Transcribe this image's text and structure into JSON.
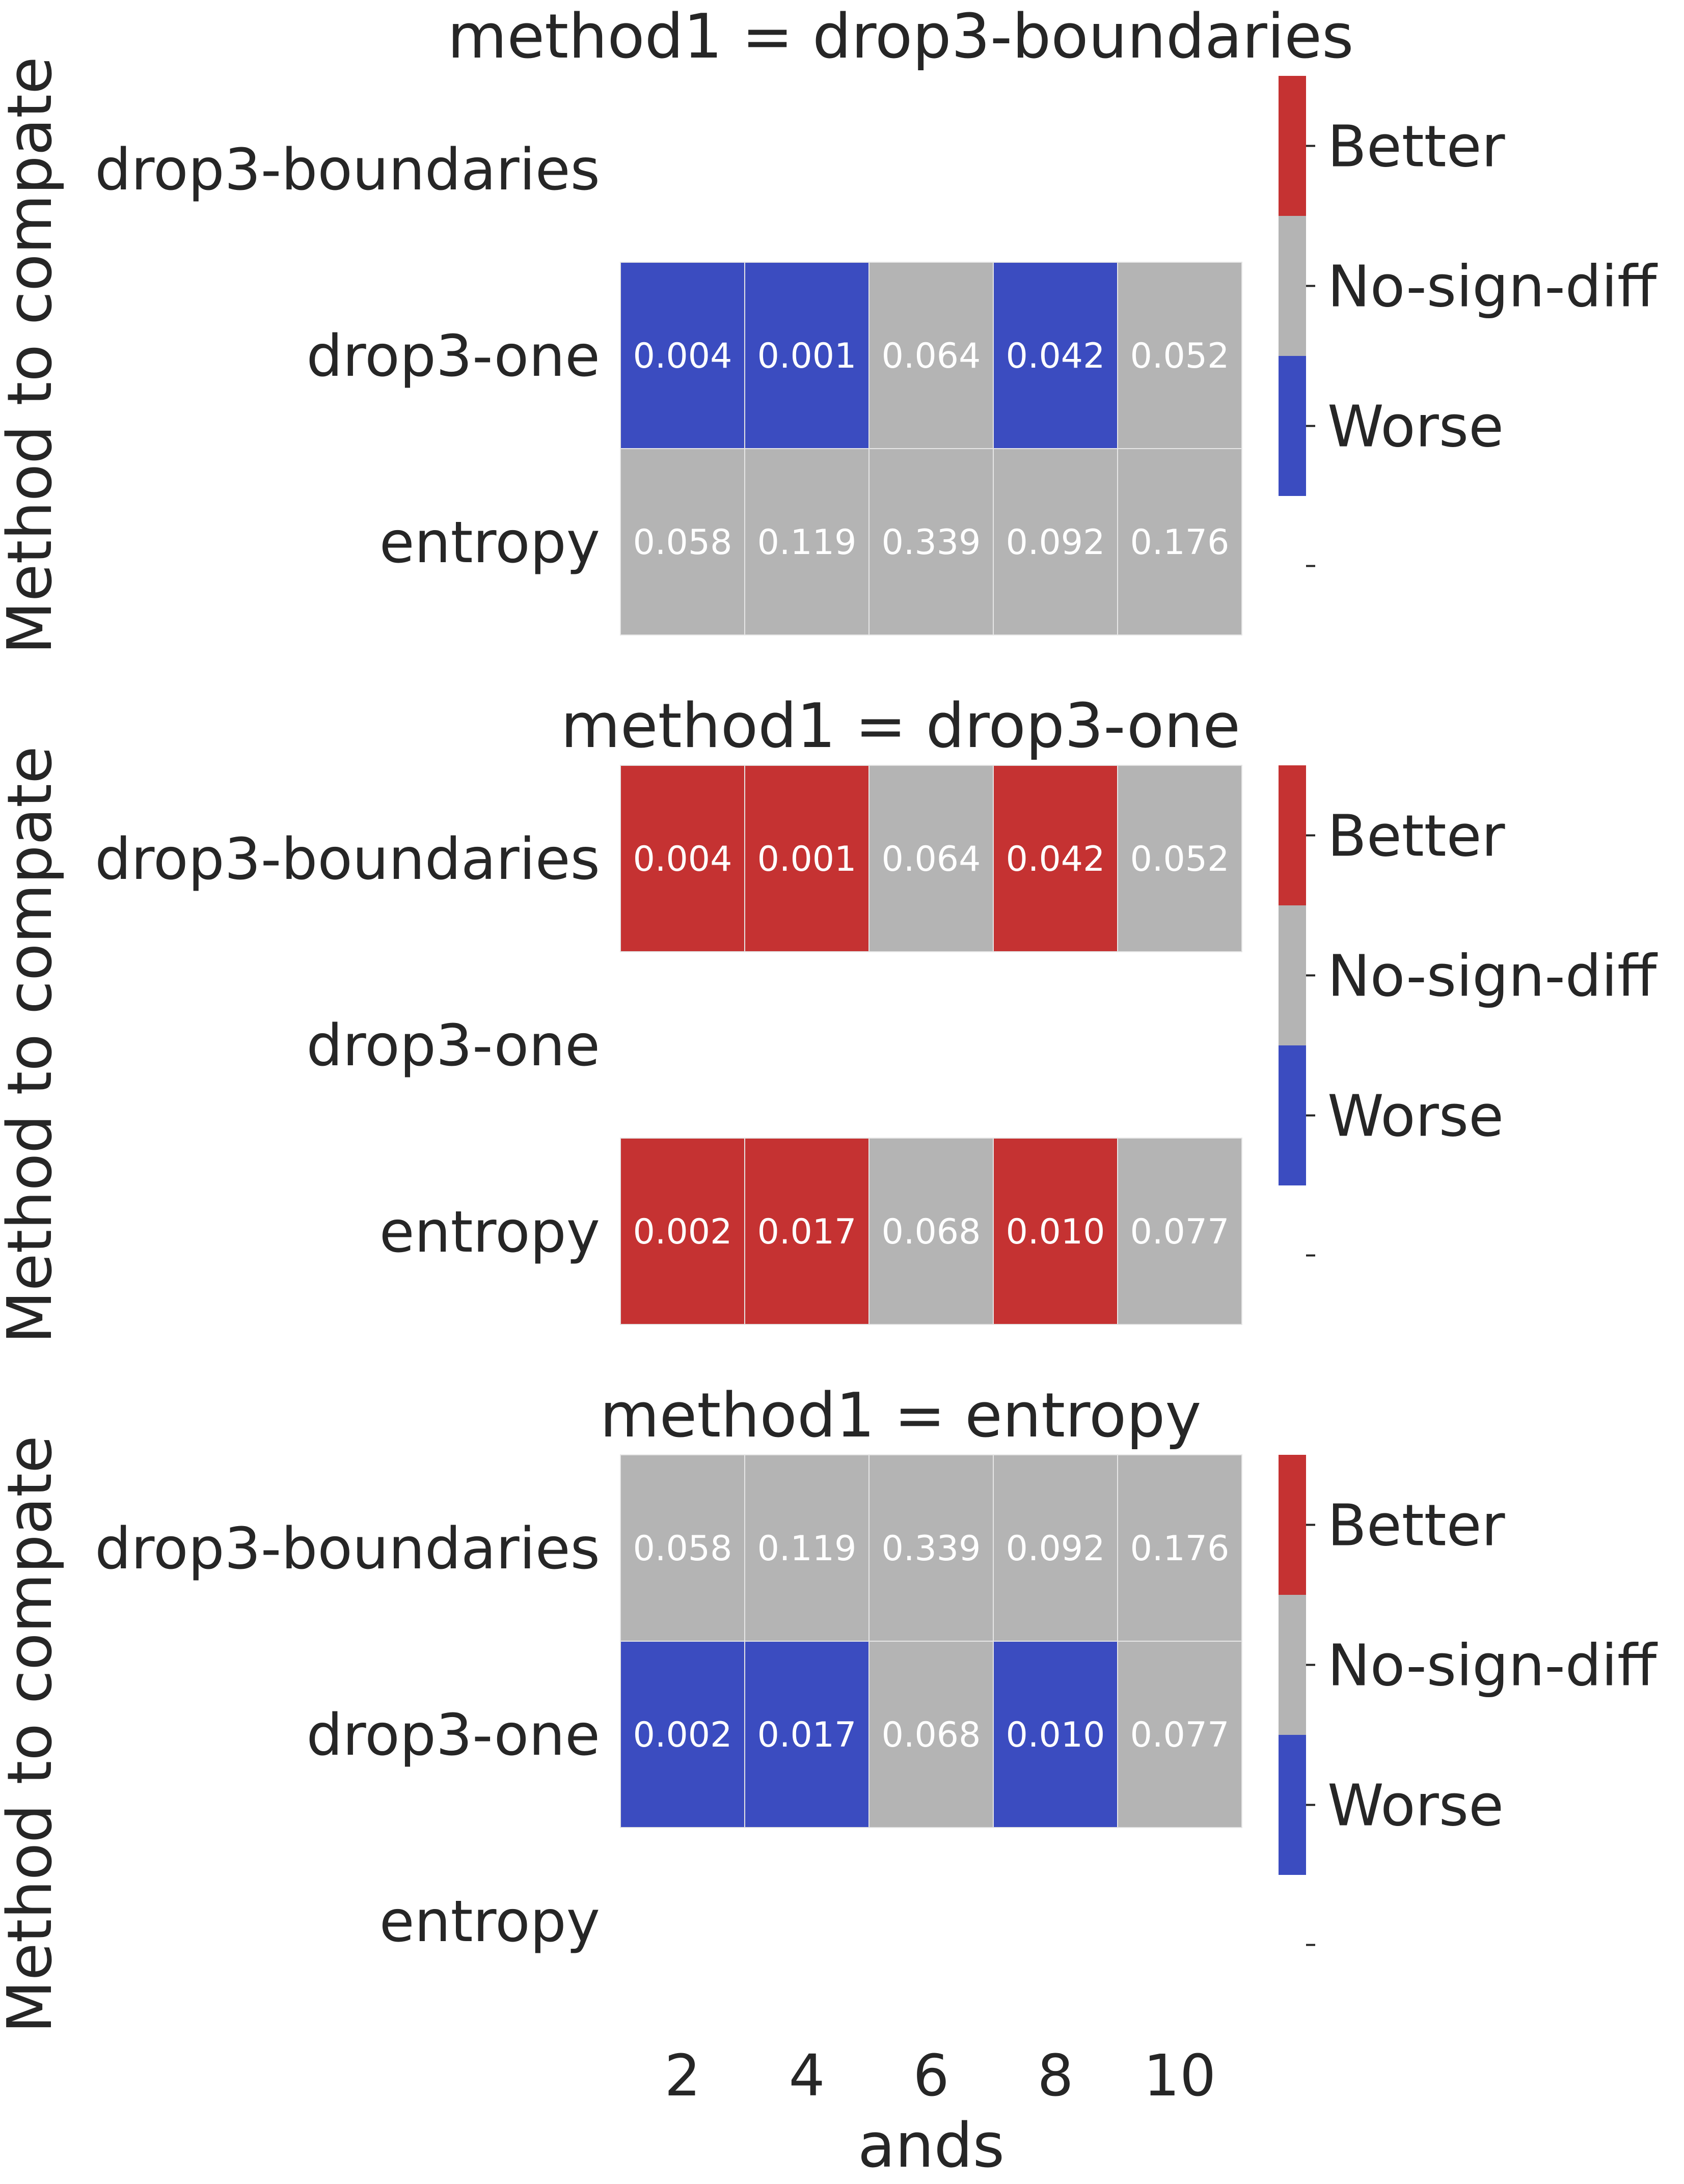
{
  "colors": {
    "better": "#c53232",
    "no_sign_diff": "#b4b4b4",
    "worse": "#3b4cc0",
    "text": "#262626",
    "cell_text": "#ffffff"
  },
  "xlabel": "ands",
  "colorbar_ticks": [
    "Better",
    "No-sign-diff",
    "Worse",
    "-"
  ],
  "chart_data": [
    {
      "type": "heatmap",
      "title": "method1 = drop3-boundaries",
      "ylabel": "Method to compate",
      "xlabel": "",
      "categories": [
        "2",
        "4",
        "6",
        "8",
        "10"
      ],
      "rows": [
        "drop3-boundaries",
        "drop3-one",
        "entropy"
      ],
      "values": [
        [
          null,
          null,
          null,
          null,
          null
        ],
        [
          0.004,
          0.001,
          0.064,
          0.042,
          0.052
        ],
        [
          0.058,
          0.119,
          0.339,
          0.092,
          0.176
        ]
      ],
      "labels": [
        [
          "",
          "",
          "",
          "",
          ""
        ],
        [
          "0.004",
          "0.001",
          "0.064",
          "0.042",
          "0.052"
        ],
        [
          "0.058",
          "0.119",
          "0.339",
          "0.092",
          "0.176"
        ]
      ],
      "status": [
        [
          "none",
          "none",
          "none",
          "none",
          "none"
        ],
        [
          "worse",
          "worse",
          "no_sign_diff",
          "worse",
          "no_sign_diff"
        ],
        [
          "no_sign_diff",
          "no_sign_diff",
          "no_sign_diff",
          "no_sign_diff",
          "no_sign_diff"
        ]
      ],
      "grid": false,
      "legend": "colorbar-right"
    },
    {
      "type": "heatmap",
      "title": "method1 = drop3-one",
      "ylabel": "Method to compate",
      "xlabel": "",
      "categories": [
        "2",
        "4",
        "6",
        "8",
        "10"
      ],
      "rows": [
        "drop3-boundaries",
        "drop3-one",
        "entropy"
      ],
      "values": [
        [
          0.004,
          0.001,
          0.064,
          0.042,
          0.052
        ],
        [
          null,
          null,
          null,
          null,
          null
        ],
        [
          0.002,
          0.017,
          0.068,
          0.01,
          0.077
        ]
      ],
      "labels": [
        [
          "0.004",
          "0.001",
          "0.064",
          "0.042",
          "0.052"
        ],
        [
          "",
          "",
          "",
          "",
          ""
        ],
        [
          "0.002",
          "0.017",
          "0.068",
          "0.010",
          "0.077"
        ]
      ],
      "status": [
        [
          "better",
          "better",
          "no_sign_diff",
          "better",
          "no_sign_diff"
        ],
        [
          "none",
          "none",
          "none",
          "none",
          "none"
        ],
        [
          "better",
          "better",
          "no_sign_diff",
          "better",
          "no_sign_diff"
        ]
      ],
      "grid": false,
      "legend": "colorbar-right"
    },
    {
      "type": "heatmap",
      "title": "method1 = entropy",
      "ylabel": "Method to compate",
      "xlabel": "ands",
      "categories": [
        "2",
        "4",
        "6",
        "8",
        "10"
      ],
      "rows": [
        "drop3-boundaries",
        "drop3-one",
        "entropy"
      ],
      "values": [
        [
          0.058,
          0.119,
          0.339,
          0.092,
          0.176
        ],
        [
          0.002,
          0.017,
          0.068,
          0.01,
          0.077
        ],
        [
          null,
          null,
          null,
          null,
          null
        ]
      ],
      "labels": [
        [
          "0.058",
          "0.119",
          "0.339",
          "0.092",
          "0.176"
        ],
        [
          "0.002",
          "0.017",
          "0.068",
          "0.010",
          "0.077"
        ],
        [
          "",
          "",
          "",
          "",
          ""
        ]
      ],
      "status": [
        [
          "no_sign_diff",
          "no_sign_diff",
          "no_sign_diff",
          "no_sign_diff",
          "no_sign_diff"
        ],
        [
          "worse",
          "worse",
          "no_sign_diff",
          "worse",
          "no_sign_diff"
        ],
        [
          "none",
          "none",
          "none",
          "none",
          "none"
        ]
      ],
      "grid": false,
      "legend": "colorbar-right"
    }
  ]
}
